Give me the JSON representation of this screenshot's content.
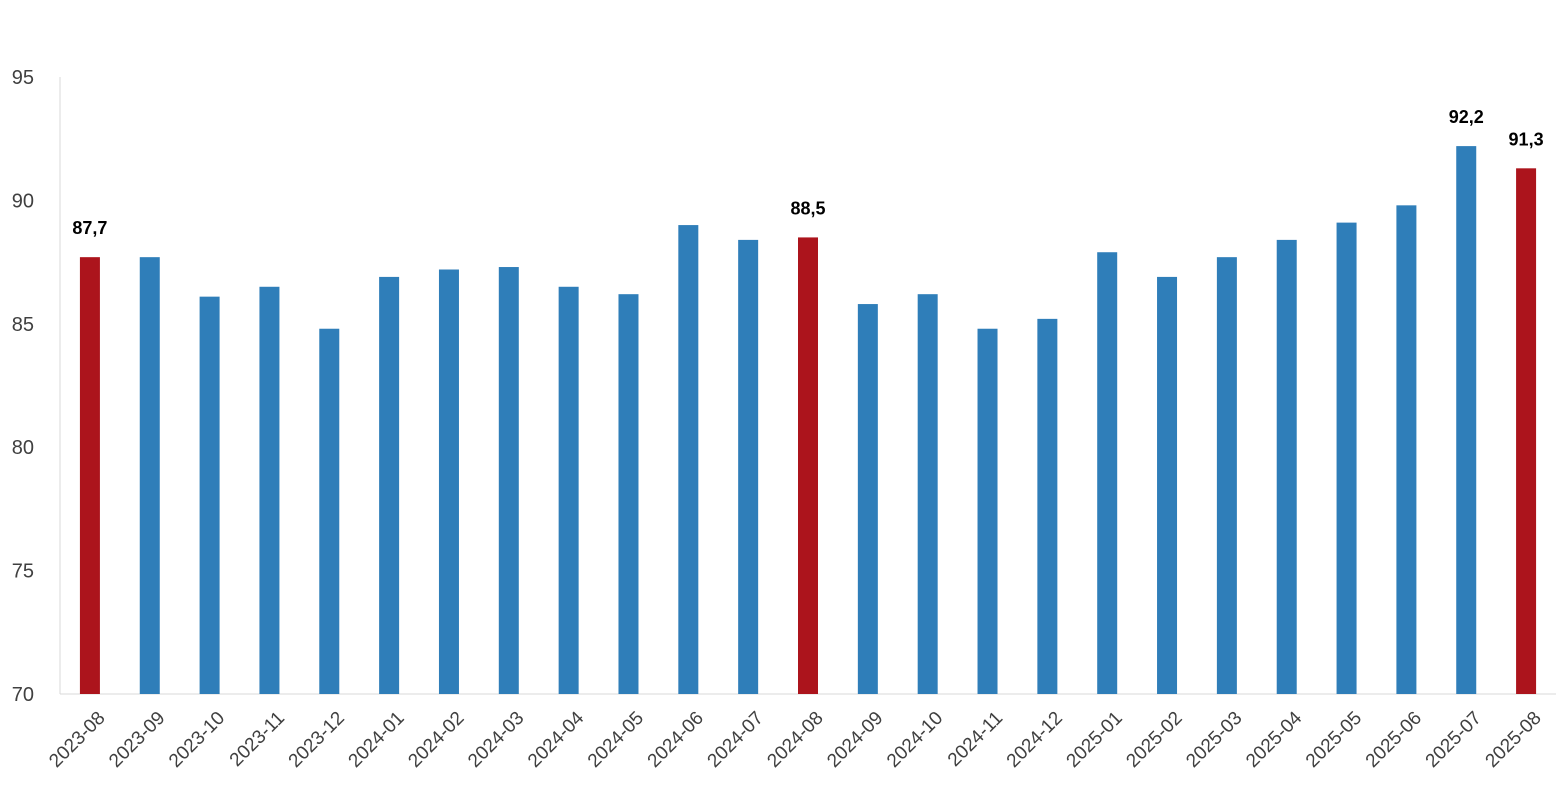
{
  "chart_data": {
    "type": "bar",
    "title": "",
    "xlabel": "",
    "ylabel": "",
    "ylim": [
      70,
      95
    ],
    "yticks": [
      70,
      75,
      80,
      85,
      90,
      95
    ],
    "grid": false,
    "legend": "none",
    "categories": [
      "2023-08",
      "2023-09",
      "2023-10",
      "2023-11",
      "2023-12",
      "2024-01",
      "2024-02",
      "2024-03",
      "2024-04",
      "2024-05",
      "2024-06",
      "2024-07",
      "2024-08",
      "2024-09",
      "2024-10",
      "2024-11",
      "2024-12",
      "2025-01",
      "2025-02",
      "2025-03",
      "2025-04",
      "2025-05",
      "2025-06",
      "2025-07",
      "2025-08"
    ],
    "values": [
      87.7,
      87.7,
      86.1,
      86.5,
      84.8,
      86.9,
      87.2,
      87.3,
      86.5,
      86.2,
      89.0,
      88.4,
      88.5,
      85.8,
      86.2,
      84.8,
      85.2,
      87.9,
      86.9,
      87.7,
      88.4,
      89.1,
      89.8,
      92.2,
      91.3
    ],
    "highlighted": [
      0,
      12,
      24
    ],
    "data_labels": [
      {
        "index": 0,
        "text": "87,7"
      },
      {
        "index": 12,
        "text": "88,5"
      },
      {
        "index": 23,
        "text": "92,2"
      },
      {
        "index": 24,
        "text": "91,3"
      }
    ],
    "colors": {
      "bar": "#2F7EB9",
      "highlight": "#AC141C",
      "axis": "#D9D9D9"
    }
  }
}
